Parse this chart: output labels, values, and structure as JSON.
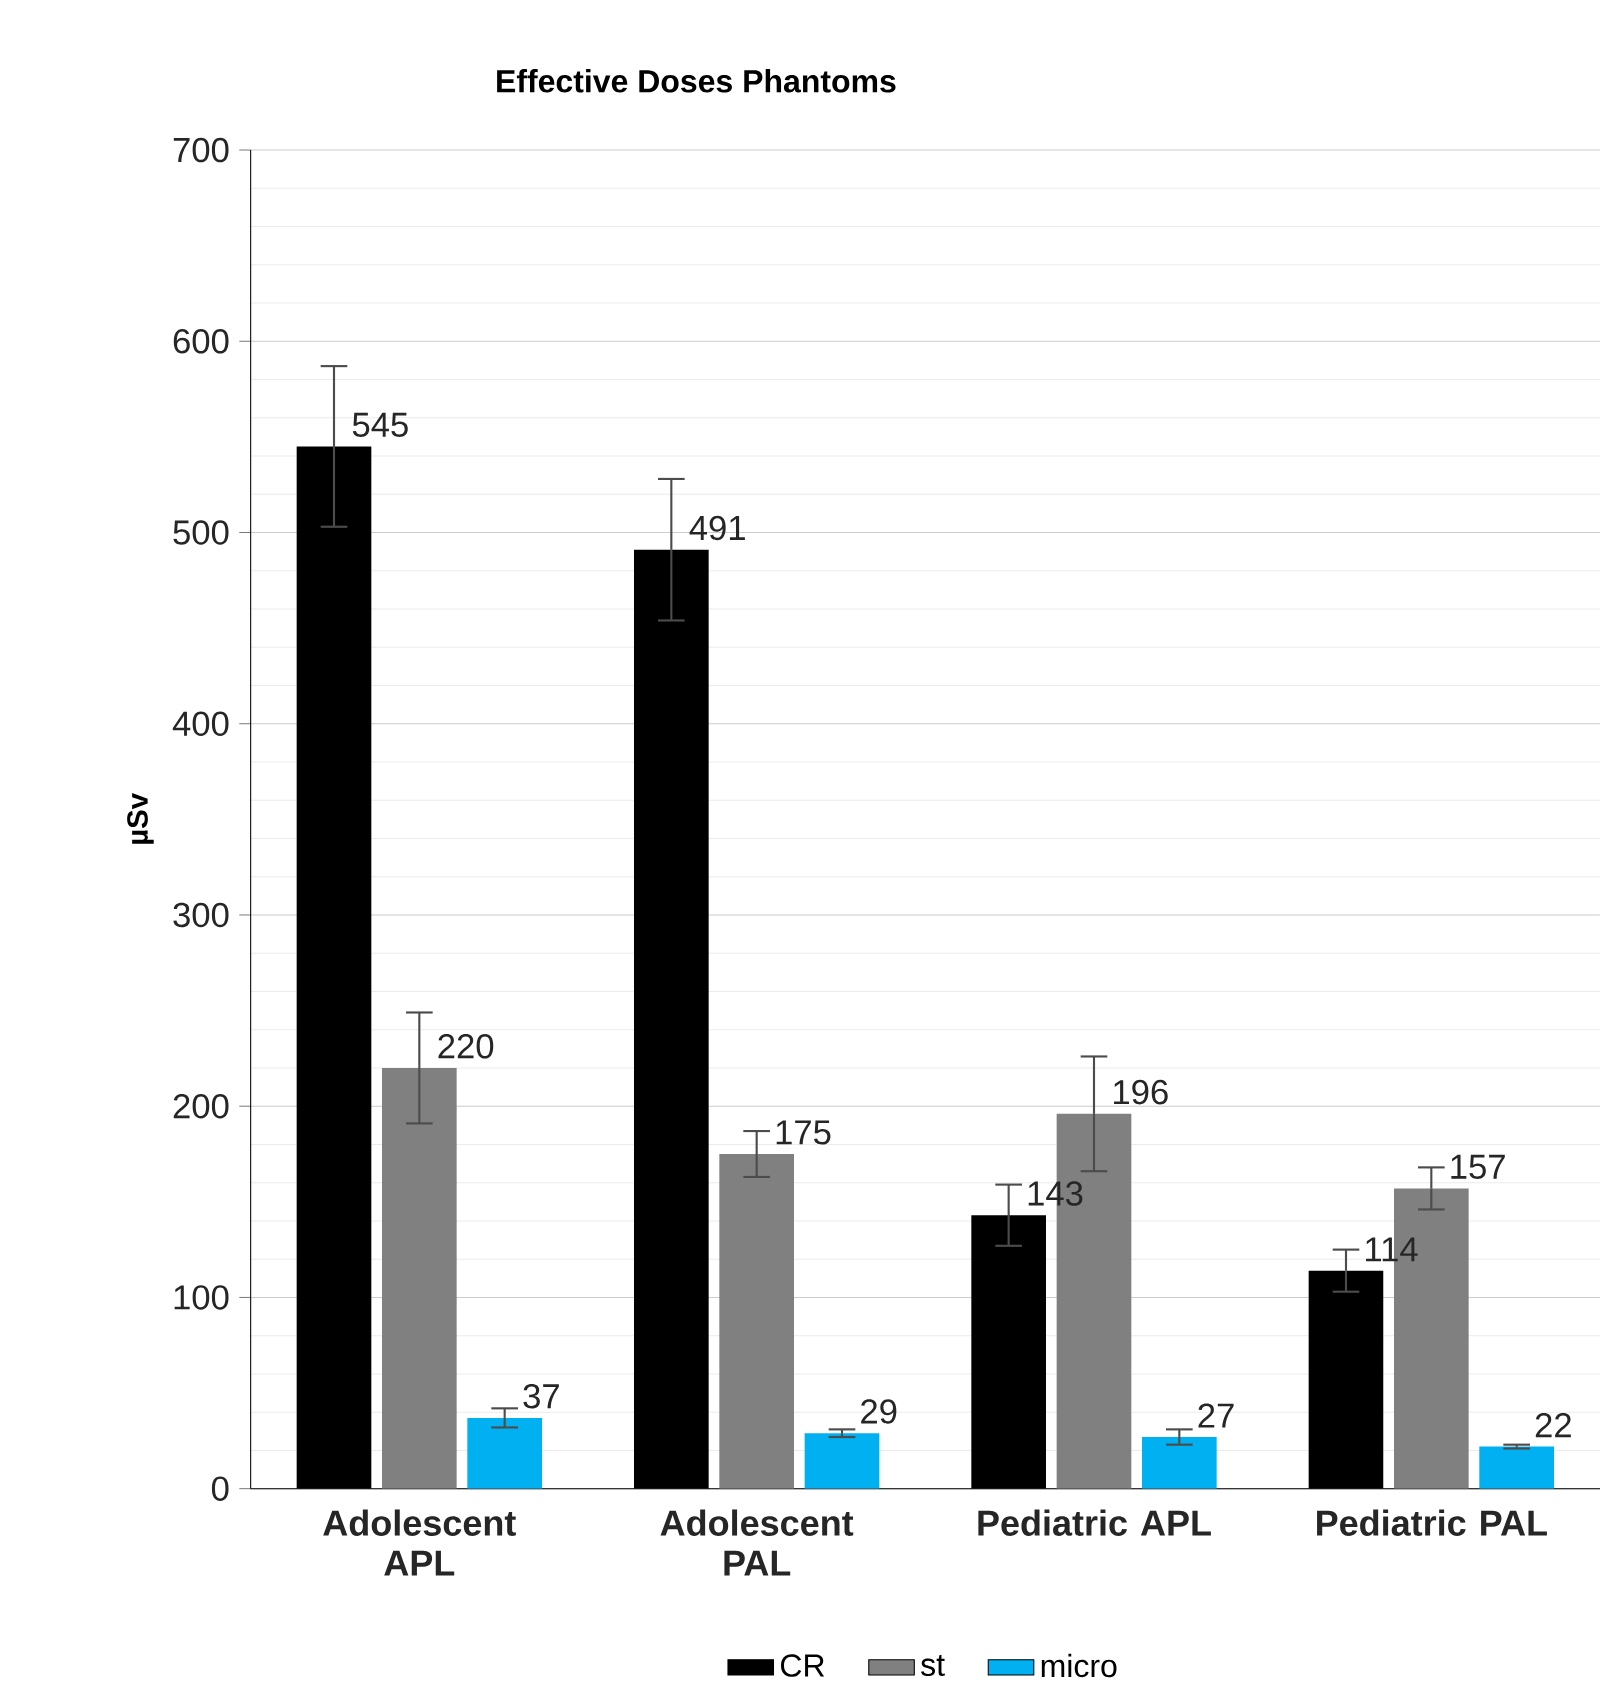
{
  "chart_data": {
    "type": "bar",
    "title": "Effective Doses Phantoms",
    "ylabel": "µSv",
    "categories": [
      "Adolescent APL",
      "Adolescent PAL",
      "Pediatric APL",
      "Pediatric PAL"
    ],
    "series": [
      {
        "name": "CR",
        "color": "#000000",
        "values": [
          545,
          491,
          143,
          114
        ],
        "errors": [
          42,
          37,
          16,
          11
        ]
      },
      {
        "name": "st",
        "color": "#808080",
        "values": [
          220,
          175,
          196,
          157
        ],
        "errors": [
          29,
          12,
          30,
          11
        ]
      },
      {
        "name": "micro",
        "color": "#00b0f0",
        "values": [
          37,
          29,
          27,
          22
        ],
        "errors": [
          5,
          2,
          4,
          1
        ]
      }
    ],
    "ylim": [
      0,
      700
    ],
    "yticks": [
      0,
      100,
      200,
      300,
      400,
      500,
      600,
      700
    ],
    "grid": "y",
    "legend": "bottom",
    "data_labels": true
  }
}
